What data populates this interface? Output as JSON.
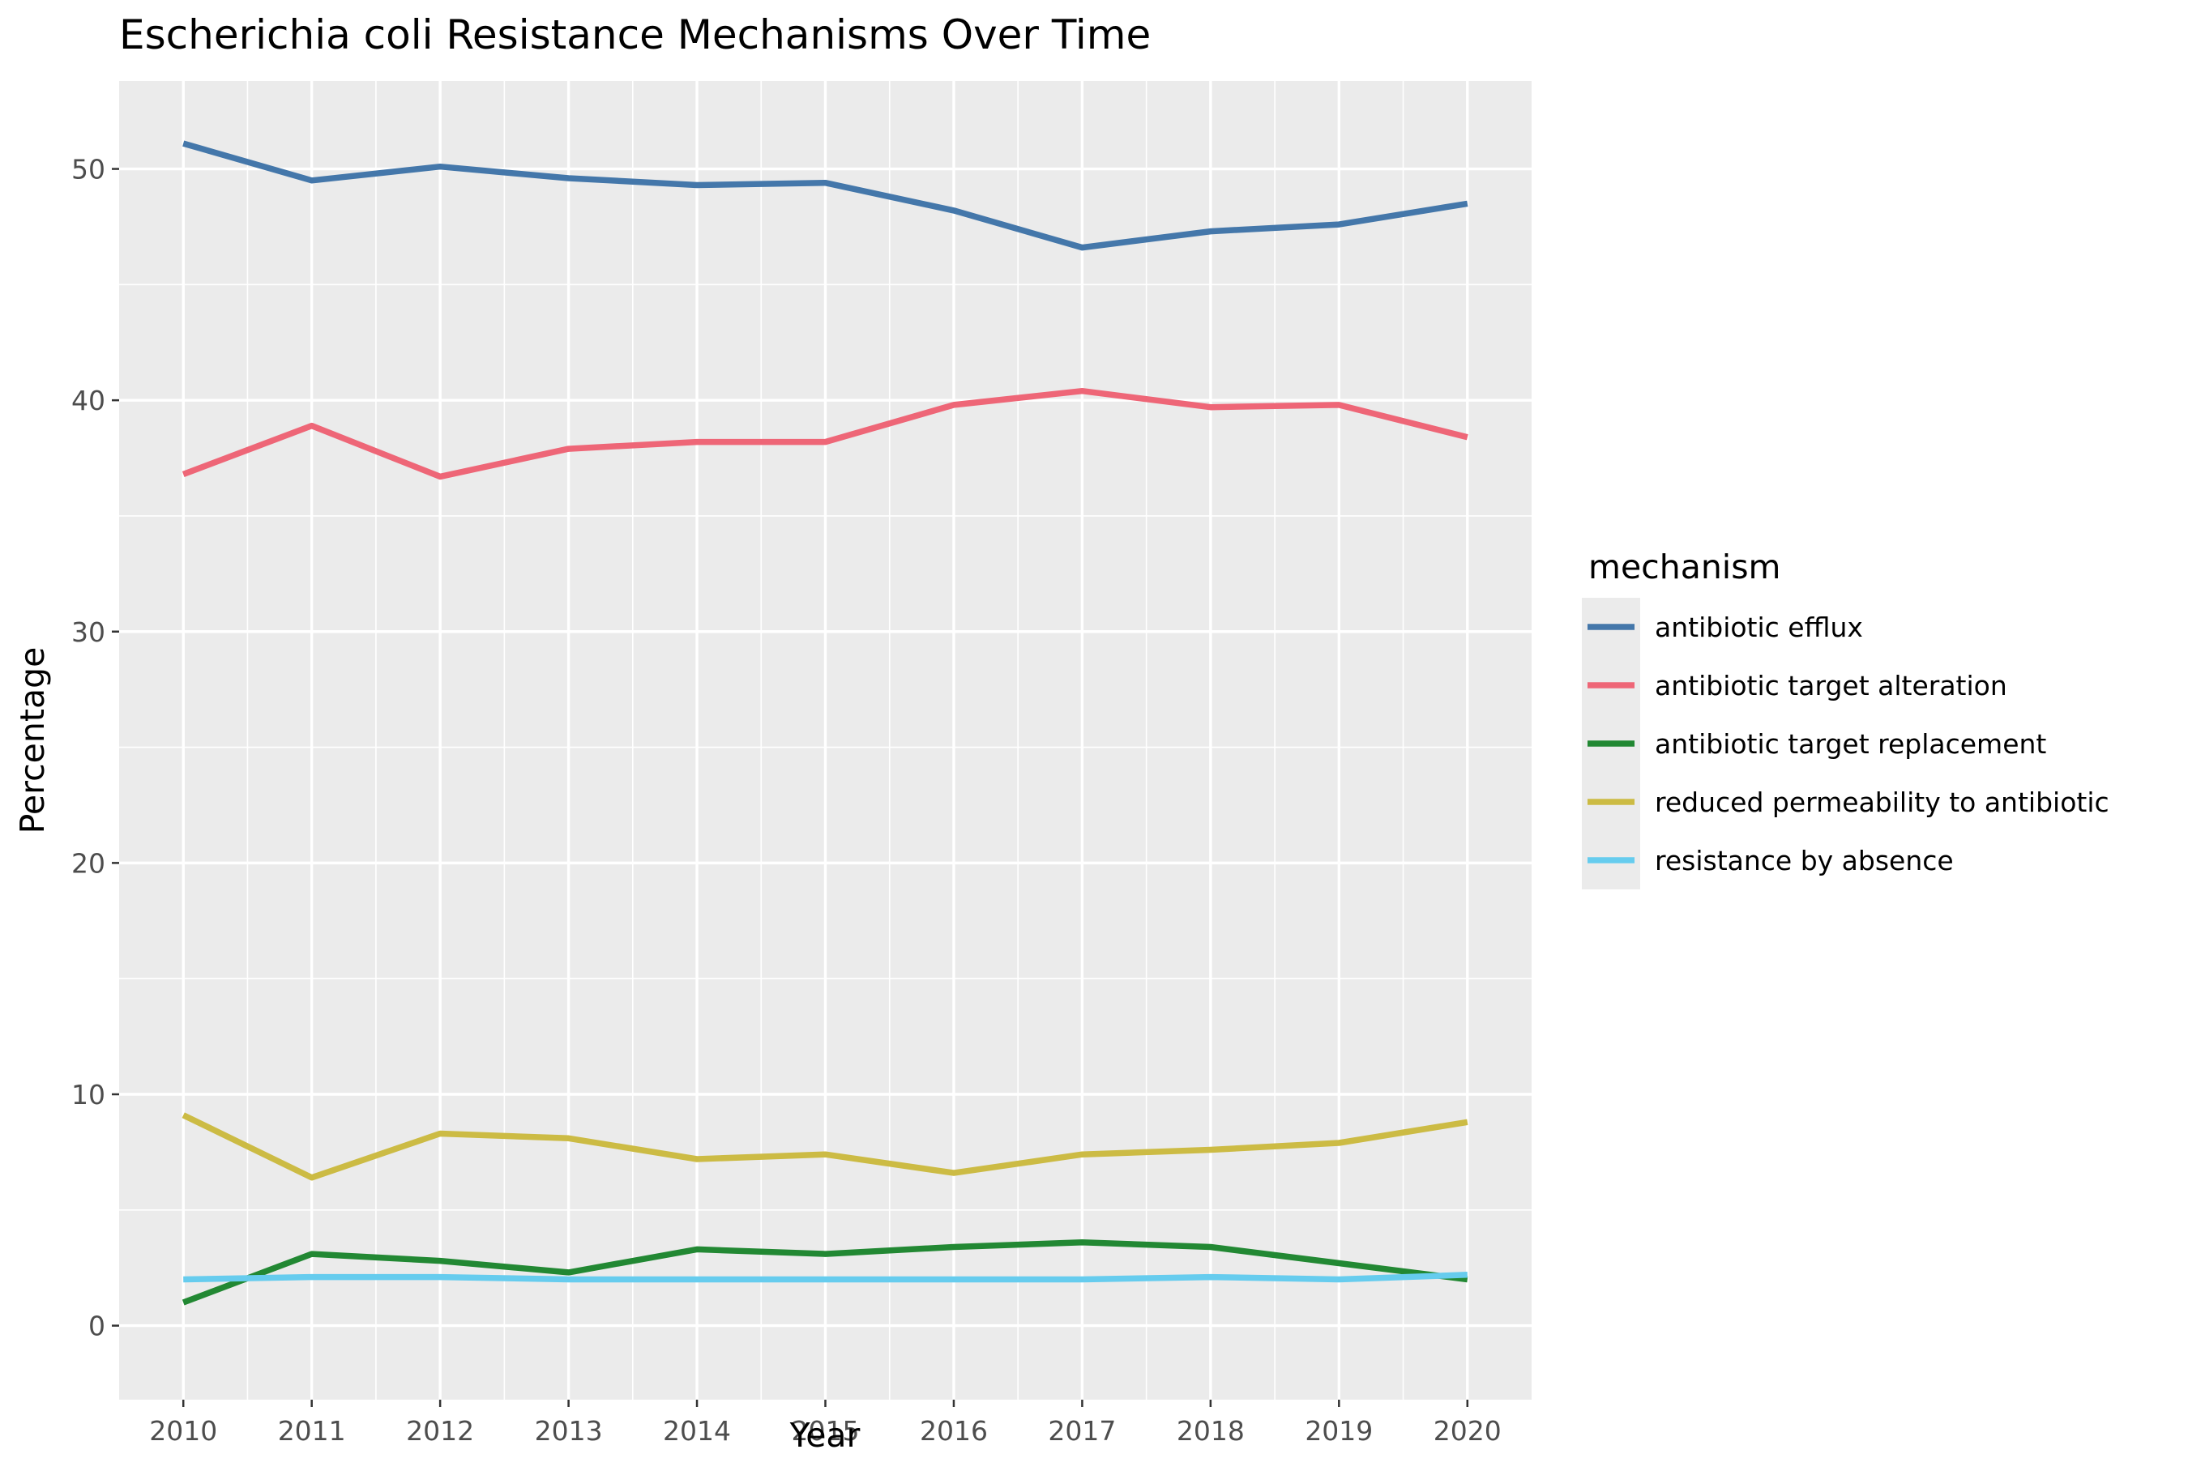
{
  "chart_data": {
    "type": "line",
    "title": "Escherichia coli Resistance Mechanisms Over Time",
    "xlabel": "Year",
    "ylabel": "Percentage",
    "x": [
      2010,
      2011,
      2012,
      2013,
      2014,
      2015,
      2016,
      2017,
      2018,
      2019,
      2020
    ],
    "xlim": [
      2009.5,
      2020.5
    ],
    "ylim": [
      -3.2,
      53.8
    ],
    "y_ticks": [
      0,
      10,
      20,
      30,
      40,
      50
    ],
    "grid": true,
    "legend": {
      "title": "mechanism",
      "position": "right"
    },
    "series": [
      {
        "name": "antibiotic efflux",
        "color": "#4477aa",
        "values": [
          51.1,
          49.5,
          50.1,
          49.6,
          49.3,
          49.4,
          48.2,
          46.6,
          47.3,
          47.6,
          48.5
        ]
      },
      {
        "name": "antibiotic target alteration",
        "color": "#ee6677",
        "values": [
          36.8,
          38.9,
          36.7,
          37.9,
          38.2,
          38.2,
          39.8,
          40.4,
          39.7,
          39.8,
          38.4
        ]
      },
      {
        "name": "antibiotic target replacement",
        "color": "#228833",
        "values": [
          1.0,
          3.1,
          2.8,
          2.3,
          3.3,
          3.1,
          3.4,
          3.6,
          3.4,
          2.7,
          2.0
        ]
      },
      {
        "name": "reduced permeability to antibiotic",
        "color": "#ccbb44",
        "values": [
          9.1,
          6.4,
          8.3,
          8.1,
          7.2,
          7.4,
          6.6,
          7.4,
          7.6,
          7.9,
          8.8
        ]
      },
      {
        "name": "resistance by absence",
        "color": "#66ccee",
        "values": [
          2.0,
          2.1,
          2.1,
          2.0,
          2.0,
          2.0,
          2.0,
          2.0,
          2.1,
          2.0,
          2.2
        ]
      }
    ]
  }
}
